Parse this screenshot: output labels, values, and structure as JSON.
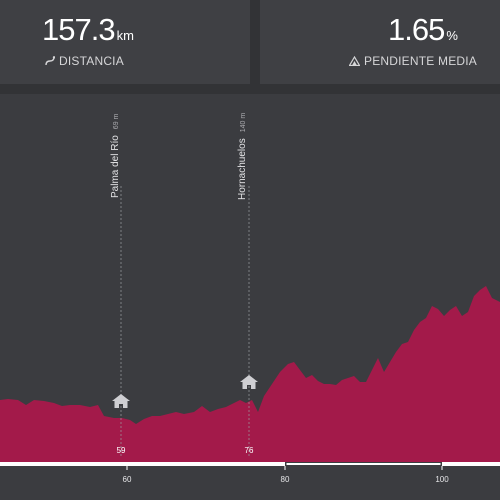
{
  "stats": {
    "distance": {
      "value": "157.3",
      "unit": "km",
      "label": "DISTANCIA",
      "icon": "distance-icon"
    },
    "slope": {
      "value": "1.65",
      "unit": "%",
      "label": "PENDIENTE MEDIA",
      "icon": "slope-icon"
    }
  },
  "towns": [
    {
      "name": "Palma del Río",
      "altitude": "69 m",
      "km_label": "59",
      "km": 59,
      "icon": "house-icon"
    },
    {
      "name": "Hornachuelos",
      "altitude": "140 m",
      "km_label": "76",
      "km": 76,
      "icon": "house-icon"
    }
  ],
  "axis": {
    "ticks": [
      {
        "label": "60",
        "km": 60
      },
      {
        "label": "80",
        "km": 80
      },
      {
        "label": "100",
        "km": 100
      }
    ]
  },
  "colors": {
    "profile": "#a31a4a",
    "background": "#3b3c40",
    "card": "#3f4044"
  }
}
